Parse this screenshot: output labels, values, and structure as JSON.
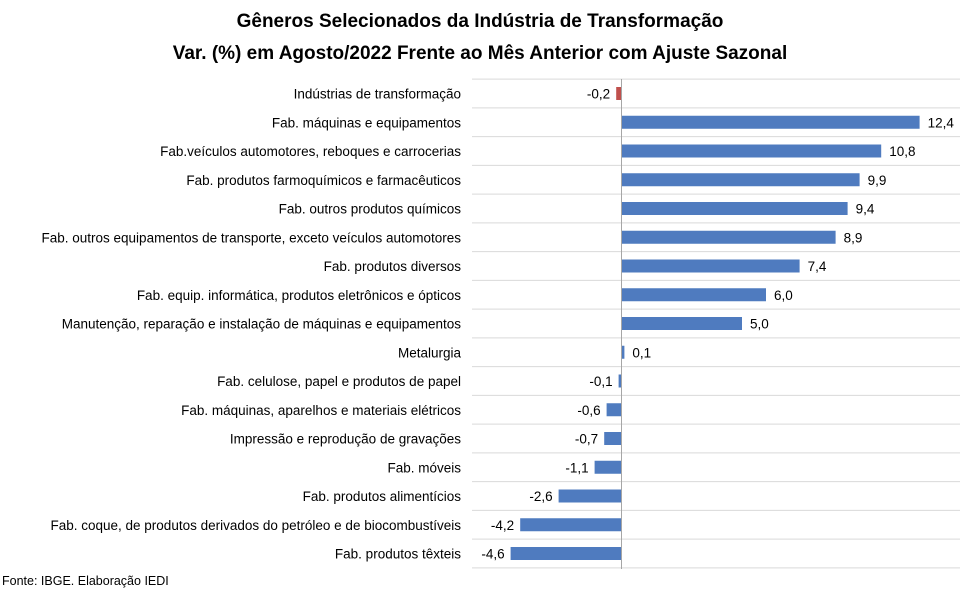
{
  "chart_data": {
    "type": "bar",
    "orientation": "horizontal",
    "title": "Gêneros Selecionados da Indústria de Transformação",
    "subtitle": "Var. (%) em Agosto/2022 Frente ao Mês Anterior com Ajuste Sazonal",
    "categories": [
      "Indústrias de transformação",
      "Fab. máquinas e equipamentos",
      "Fab.veículos automotores, reboques e carrocerias",
      "Fab. produtos farmoquímicos e farmacêuticos",
      "Fab. outros produtos químicos",
      "Fab. outros equipamentos de transporte, exceto veículos automotores",
      "Fab. produtos diversos",
      "Fab. equip. informática, produtos eletrônicos e ópticos",
      "Manutenção, reparação e instalação de máquinas e equipamentos",
      "Metalurgia",
      "Fab. celulose, papel e produtos de papel",
      "Fab. máquinas, aparelhos e materiais elétricos",
      "Impressão e reprodução de gravações",
      "Fab. móveis",
      "Fab. produtos alimentícios",
      "Fab. coque, de produtos derivados do petróleo e de biocombustíveis",
      "Fab. produtos têxteis"
    ],
    "values": [
      -0.2,
      12.4,
      10.8,
      9.9,
      9.4,
      8.9,
      7.4,
      6.0,
      5.0,
      0.1,
      -0.1,
      -0.6,
      -0.7,
      -1.1,
      -2.6,
      -4.2,
      -4.6
    ],
    "value_labels": [
      "-0,2",
      "12,4",
      "10,8",
      "9,9",
      "9,4",
      "8,9",
      "7,4",
      "6,0",
      "5,0",
      "0,1",
      "-0,1",
      "-0,6",
      "-0,7",
      "-1,1",
      "-2,6",
      "-4,2",
      "-4,6"
    ],
    "highlight_index": 0,
    "colors": {
      "bar": "#4f7bbf",
      "highlight": "#c0504d",
      "grid": "#d9d9d9",
      "axis": "#a6a6a6"
    },
    "xlim": [
      -4.6,
      12.4
    ],
    "grid": true
  },
  "source": "Fonte: IBGE. Elaboração IEDI"
}
